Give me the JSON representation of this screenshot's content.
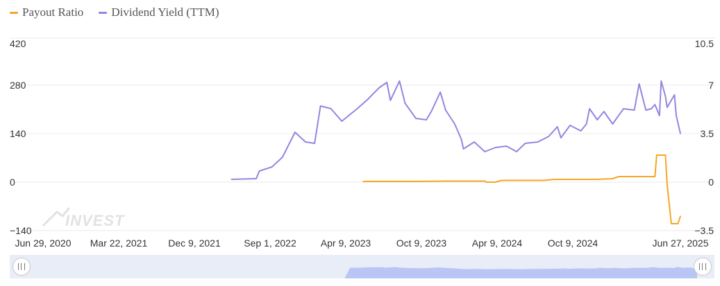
{
  "chart_data": {
    "type": "line",
    "x_labels": [
      "Jun 29, 2020",
      "Mar 22, 2021",
      "Dec 9, 2021",
      "Sep 1, 2022",
      "Apr 9, 2023",
      "Oct 9, 2023",
      "Apr 9, 2024",
      "Oct 9, 2024",
      "Jun 27, 2025"
    ],
    "y_left": {
      "ticks": [
        "420",
        "280",
        "140",
        "0",
        "−140"
      ],
      "range": [
        -140,
        420
      ]
    },
    "y_right": {
      "ticks": [
        "10.5",
        "7",
        "3.5",
        "0",
        "−3.5"
      ],
      "range": [
        -3.5,
        10.5
      ]
    },
    "series": [
      {
        "name": "Payout Ratio",
        "color": "#f5a623",
        "axis": "left",
        "points": [
          [
            "2023-01-01",
            2
          ],
          [
            "2023-06-01",
            2
          ],
          [
            "2023-09-01",
            3
          ],
          [
            "2023-12-15",
            3
          ],
          [
            "2023-12-20",
            0
          ],
          [
            "2024-01-15",
            0
          ],
          [
            "2024-02-01",
            5
          ],
          [
            "2024-06-01",
            5
          ],
          [
            "2024-07-01",
            8
          ],
          [
            "2024-11-01",
            8
          ],
          [
            "2024-12-15",
            10
          ],
          [
            "2025-01-01",
            16
          ],
          [
            "2025-03-15",
            16
          ],
          [
            "2025-04-15",
            16
          ],
          [
            "2025-04-20",
            78
          ],
          [
            "2025-05-15",
            78
          ],
          [
            "2025-05-20",
            -8
          ],
          [
            "2025-06-01",
            -120
          ],
          [
            "2025-06-20",
            -120
          ],
          [
            "2025-06-27",
            -98
          ]
        ]
      },
      {
        "name": "Dividend Yield (TTM)",
        "color": "#9485e1",
        "axis": "right",
        "points": [
          [
            "2021-12-20",
            0.2
          ],
          [
            "2022-03-01",
            0.25
          ],
          [
            "2022-03-10",
            0.8
          ],
          [
            "2022-04-15",
            1.1
          ],
          [
            "2022-05-15",
            1.8
          ],
          [
            "2022-06-20",
            3.6
          ],
          [
            "2022-07-20",
            2.9
          ],
          [
            "2022-08-15",
            2.8
          ],
          [
            "2022-09-01",
            5.5
          ],
          [
            "2022-10-01",
            5.3
          ],
          [
            "2022-11-01",
            4.4
          ],
          [
            "2022-12-15",
            5.3
          ],
          [
            "2023-01-15",
            6.0
          ],
          [
            "2023-02-15",
            6.8
          ],
          [
            "2023-03-10",
            7.2
          ],
          [
            "2023-03-20",
            5.9
          ],
          [
            "2023-04-15",
            7.3
          ],
          [
            "2023-05-01",
            5.7
          ],
          [
            "2023-06-01",
            4.6
          ],
          [
            "2023-07-01",
            4.5
          ],
          [
            "2023-07-15",
            5.1
          ],
          [
            "2023-08-10",
            6.5
          ],
          [
            "2023-08-25",
            5.2
          ],
          [
            "2023-09-20",
            4.2
          ],
          [
            "2023-10-09",
            3.1
          ],
          [
            "2023-10-15",
            2.4
          ],
          [
            "2023-11-15",
            2.9
          ],
          [
            "2023-12-15",
            2.2
          ],
          [
            "2024-01-15",
            2.5
          ],
          [
            "2024-02-15",
            2.6
          ],
          [
            "2024-03-15",
            2.2
          ],
          [
            "2024-04-09",
            2.8
          ],
          [
            "2024-05-15",
            2.9
          ],
          [
            "2024-06-15",
            3.3
          ],
          [
            "2024-07-10",
            4.0
          ],
          [
            "2024-07-20",
            3.2
          ],
          [
            "2024-08-15",
            4.1
          ],
          [
            "2024-09-15",
            3.7
          ],
          [
            "2024-10-01",
            4.2
          ],
          [
            "2024-10-10",
            5.3
          ],
          [
            "2024-11-01",
            4.5
          ],
          [
            "2024-11-20",
            5.1
          ],
          [
            "2024-12-15",
            4.2
          ],
          [
            "2025-01-15",
            5.3
          ],
          [
            "2025-02-15",
            5.2
          ],
          [
            "2025-03-01",
            7.1
          ],
          [
            "2025-03-20",
            5.2
          ],
          [
            "2025-04-05",
            5.3
          ],
          [
            "2025-04-15",
            5.6
          ],
          [
            "2025-04-28",
            4.8
          ],
          [
            "2025-05-03",
            7.3
          ],
          [
            "2025-05-15",
            6.2
          ],
          [
            "2025-05-20",
            5.4
          ],
          [
            "2025-06-10",
            6.3
          ],
          [
            "2025-06-15",
            4.8
          ],
          [
            "2025-06-27",
            3.5
          ]
        ]
      }
    ],
    "grid": true,
    "legend_position": "top-left"
  },
  "watermark": "INVEST",
  "colors": {
    "payout": "#f5a623",
    "yield": "#9485e1",
    "grid": "#ebebeb",
    "navigator": "#e9edf8",
    "navigator_fill": "#b9c5f4"
  }
}
